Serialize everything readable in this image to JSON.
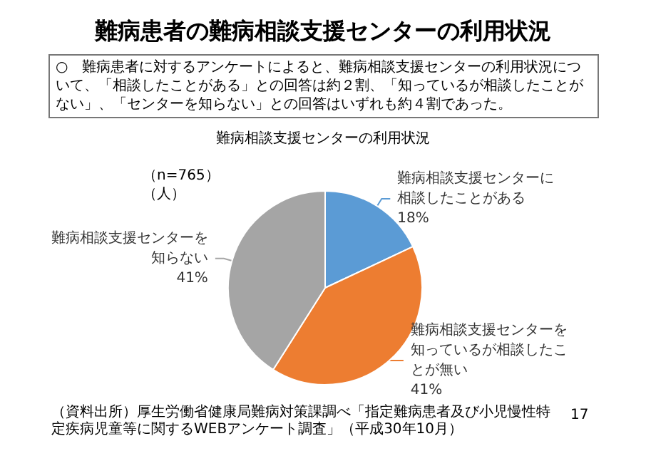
{
  "chart_data": {
    "type": "pie",
    "title": "難病患者の難病相談支援センターの利用状況",
    "subtitle": "○　難病患者に対するアンケートによると、難病相談支援センターの利用状況について、「相談したことがある」との回答は約２割、「知っているが相談したことがない」、「センターを知らない」との回答はいずれも約４割であった。",
    "annotations": [
      "難病相談支援センターの利用状況",
      "（n=765）",
      "（人）",
      "（資料出所）厚生労働省健康局難病対策課調べ「指定難病患者及び小児慢性特定疾病児童等に関するWEBアンケート調査」（平成30年10月）",
      "17"
    ],
    "categories": [
      "難病相談支援センターに相談したことがある",
      "難病相談支援センターを知っているが相談したことが無い",
      "難病相談支援センターを知らない"
    ],
    "values": [
      18,
      41,
      41
    ],
    "colors": [
      "#5b9bd5",
      "#ed7d31",
      "#a5a5a5"
    ],
    "value_labels": [
      "18%",
      "41%",
      "41%"
    ],
    "legend": false
  }
}
